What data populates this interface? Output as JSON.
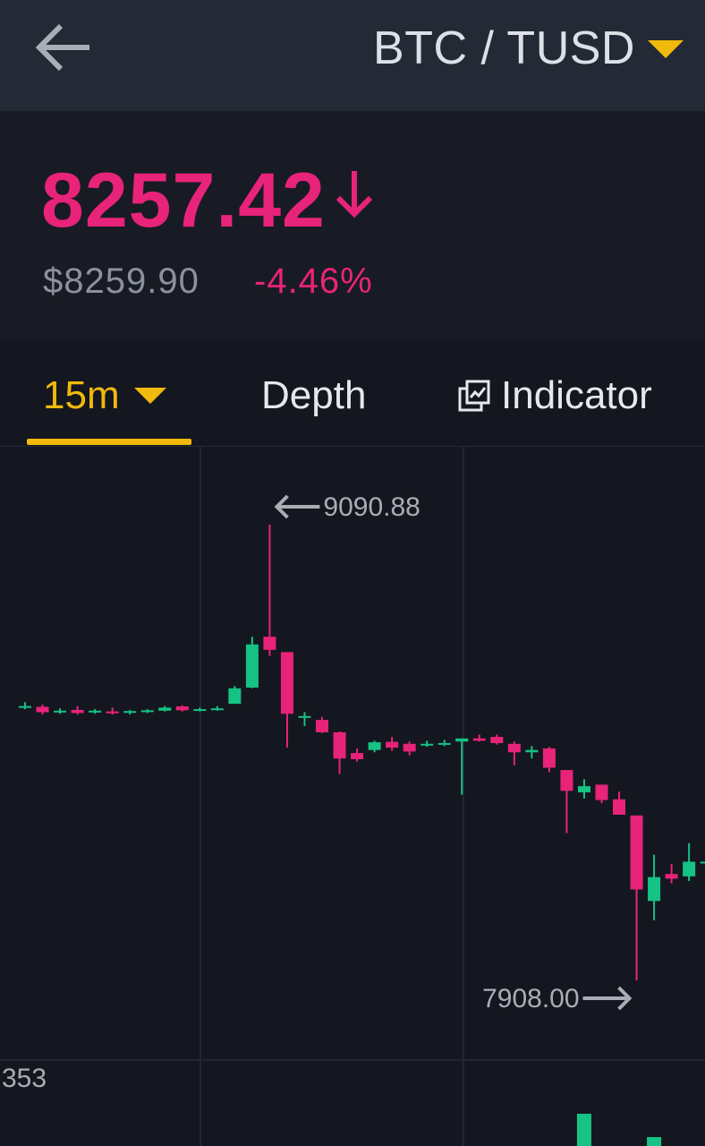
{
  "header": {
    "back_icon": "arrow-left-icon",
    "pair": "BTC / TUSD",
    "pair_dropdown_icon": "caret-down-icon",
    "colors": {
      "accent": "#f0b90b",
      "up": "#16c284",
      "down": "#e8237a"
    }
  },
  "price": {
    "last": "8257.42",
    "direction_icon": "arrow-down-icon",
    "fiat": "$8259.90",
    "change": "-4.46%"
  },
  "tabs": {
    "interval": "15m",
    "interval_dropdown_icon": "caret-down-icon",
    "depth": "Depth",
    "indicator": "Indicator",
    "indicator_icon": "indicator-chart-icon"
  },
  "chart_data": {
    "type": "candlestick",
    "high_label": "9090.88",
    "low_label": "7908.00",
    "volume_max_label": "353",
    "ylim": [
      7908.0,
      9090.88
    ],
    "series": [
      {
        "candles": [
          {
            "o": 8620,
            "c": 8620,
            "h": 8630,
            "l": 8612
          },
          {
            "o": 8618,
            "c": 8604,
            "h": 8624,
            "l": 8598
          },
          {
            "o": 8606,
            "c": 8608,
            "h": 8614,
            "l": 8600
          },
          {
            "o": 8610,
            "c": 8602,
            "h": 8620,
            "l": 8598
          },
          {
            "o": 8606,
            "c": 8608,
            "h": 8612,
            "l": 8600
          },
          {
            "o": 8606,
            "c": 8605,
            "h": 8616,
            "l": 8598
          },
          {
            "o": 8603,
            "c": 8607,
            "h": 8610,
            "l": 8598
          },
          {
            "o": 8606,
            "c": 8609,
            "h": 8612,
            "l": 8602
          },
          {
            "o": 8608,
            "c": 8616,
            "h": 8620,
            "l": 8606
          },
          {
            "o": 8619,
            "c": 8609,
            "h": 8622,
            "l": 8606
          },
          {
            "o": 8610,
            "c": 8612,
            "h": 8616,
            "l": 8606
          },
          {
            "o": 8612,
            "c": 8614,
            "h": 8620,
            "l": 8608
          },
          {
            "o": 8626,
            "c": 8666,
            "h": 8672,
            "l": 8626
          },
          {
            "o": 8668,
            "c": 8780,
            "h": 8800,
            "l": 8666
          },
          {
            "o": 8800,
            "c": 8766,
            "h": 9090.88,
            "l": 8750
          },
          {
            "o": 8760,
            "c": 8600,
            "h": 8760,
            "l": 8512
          },
          {
            "o": 8594,
            "c": 8594,
            "h": 8604,
            "l": 8568
          },
          {
            "o": 8584,
            "c": 8552,
            "h": 8592,
            "l": 8550
          },
          {
            "o": 8552,
            "c": 8484,
            "h": 8554,
            "l": 8444
          },
          {
            "o": 8498,
            "c": 8482,
            "h": 8510,
            "l": 8476
          },
          {
            "o": 8506,
            "c": 8526,
            "h": 8530,
            "l": 8500
          },
          {
            "o": 8527,
            "c": 8512,
            "h": 8540,
            "l": 8504
          },
          {
            "o": 8522,
            "c": 8502,
            "h": 8528,
            "l": 8492
          },
          {
            "o": 8520,
            "c": 8522,
            "h": 8530,
            "l": 8514
          },
          {
            "o": 8522,
            "c": 8524,
            "h": 8532,
            "l": 8516
          },
          {
            "o": 8528,
            "c": 8536,
            "h": 8536,
            "l": 8390
          },
          {
            "o": 8536,
            "c": 8530,
            "h": 8546,
            "l": 8528
          },
          {
            "o": 8540,
            "c": 8524,
            "h": 8546,
            "l": 8520
          },
          {
            "o": 8522,
            "c": 8500,
            "h": 8528,
            "l": 8466
          },
          {
            "o": 8500,
            "c": 8506,
            "h": 8516,
            "l": 8484
          },
          {
            "o": 8510,
            "c": 8460,
            "h": 8514,
            "l": 8448
          },
          {
            "o": 8454,
            "c": 8400,
            "h": 8454,
            "l": 8290
          },
          {
            "o": 8396,
            "c": 8412,
            "h": 8430,
            "l": 8380
          },
          {
            "o": 8416,
            "c": 8376,
            "h": 8416,
            "l": 8368
          },
          {
            "o": 8378,
            "c": 8338,
            "h": 8398,
            "l": 8338
          },
          {
            "o": 8336,
            "c": 8144,
            "h": 8336,
            "l": 7908.0
          },
          {
            "o": 8114,
            "c": 8176,
            "h": 8234,
            "l": 8064
          },
          {
            "o": 8184,
            "c": 8172,
            "h": 8210,
            "l": 8160
          },
          {
            "o": 8178,
            "c": 8216,
            "h": 8264,
            "l": 8166
          },
          {
            "o": 8216,
            "c": 8216,
            "h": 8230,
            "l": 8200
          }
        ]
      }
    ],
    "volumes": [
      {
        "index": 32,
        "value": 353
      },
      {
        "index": 36,
        "value": 353
      }
    ]
  }
}
